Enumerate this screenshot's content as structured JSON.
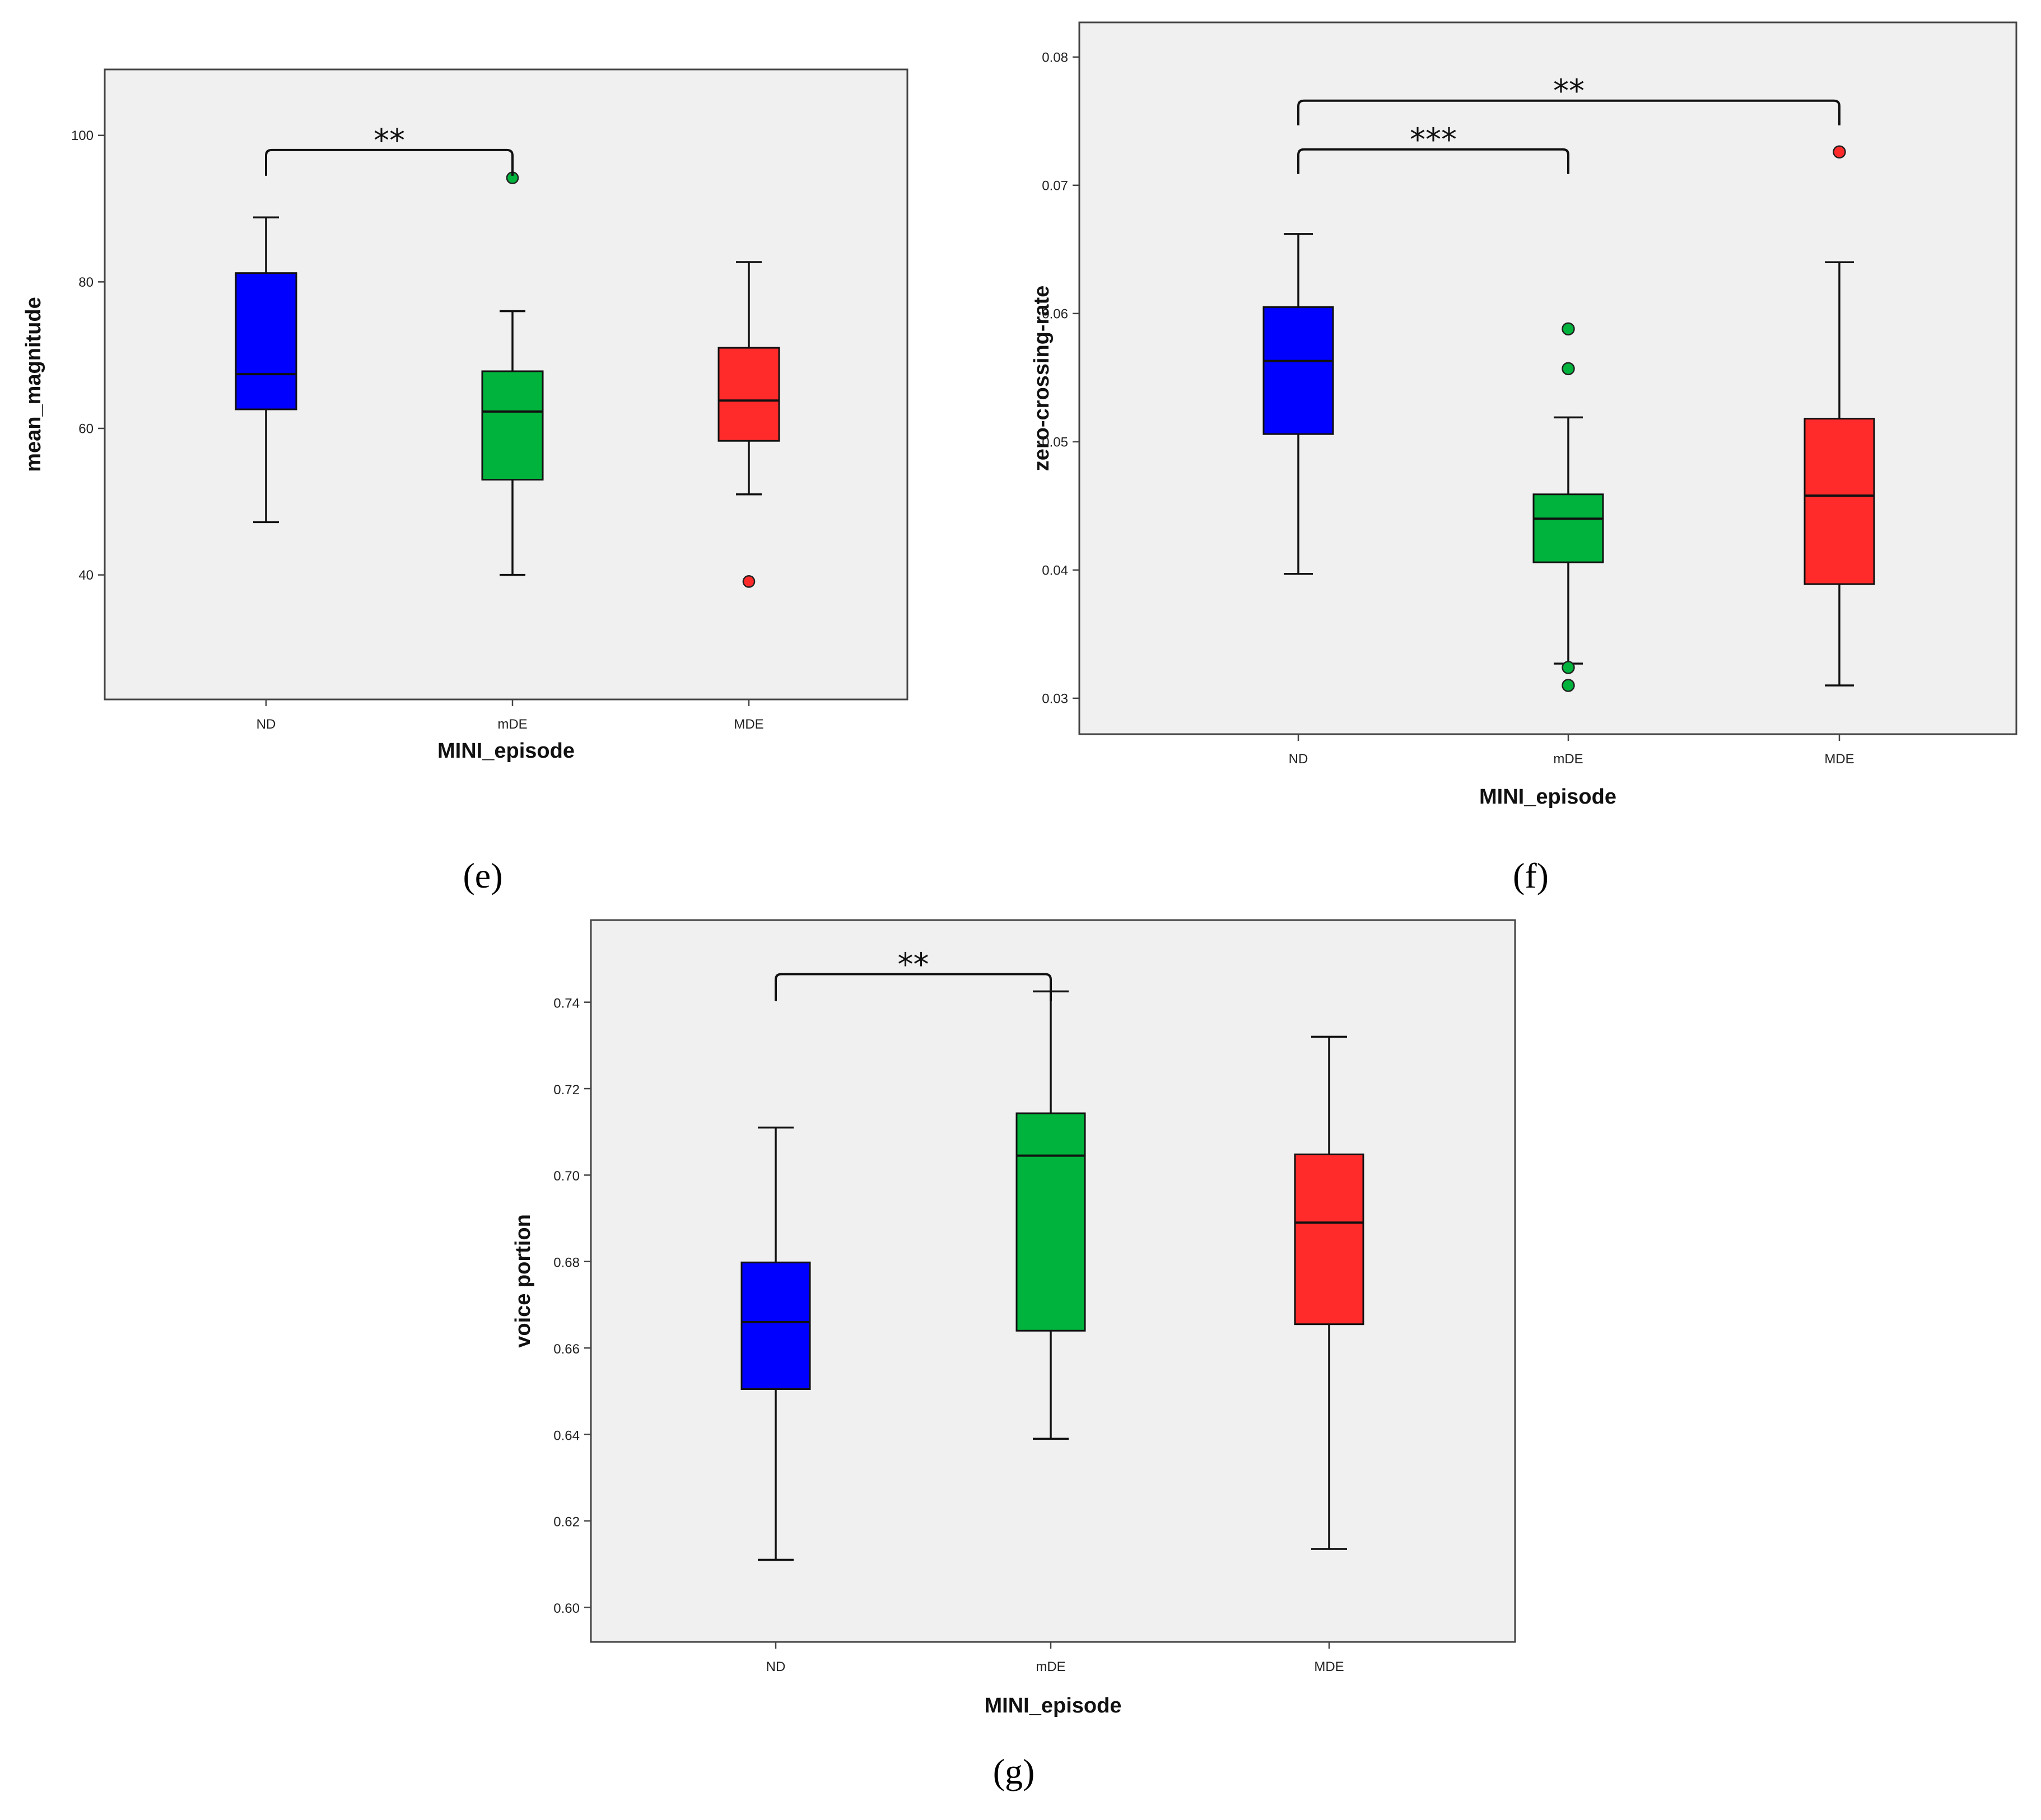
{
  "chart_data": [
    {
      "type": "box",
      "panel_label": "(e)",
      "xlabel": "MINI_episode",
      "ylabel": "mean_magnitude",
      "ylim": [
        23,
        109
      ],
      "yticks": [
        40,
        60,
        80,
        100
      ],
      "y_decimals": 0,
      "categories": [
        "ND",
        "mDE",
        "MDE"
      ],
      "boxes": [
        {
          "name": "ND",
          "color": "#0000ff",
          "min": 47.2,
          "q1": 62.6,
          "median": 67.4,
          "q3": 81.2,
          "max": 88.8,
          "outliers": []
        },
        {
          "name": "mDE",
          "color": "#00b33c",
          "min": 40.0,
          "q1": 53.0,
          "median": 62.3,
          "q3": 67.8,
          "max": 76.0,
          "outliers": [
            94.2
          ]
        },
        {
          "name": "MDE",
          "color": "#ff2b2b",
          "min": 51.0,
          "q1": 58.3,
          "median": 63.8,
          "q3": 71.0,
          "max": 82.7,
          "outliers": [
            39.1
          ]
        }
      ],
      "significance": [
        {
          "from": "ND",
          "to": "mDE",
          "label": "**",
          "y": 98
        }
      ]
    },
    {
      "type": "box",
      "panel_label": "(f)",
      "xlabel": "MINI_episode",
      "ylabel": "zero-crossing-rate",
      "ylim": [
        0.0272,
        0.0827
      ],
      "yticks": [
        0.03,
        0.04,
        0.05,
        0.06,
        0.07,
        0.08
      ],
      "y_decimals": 2,
      "categories": [
        "ND",
        "mDE",
        "MDE"
      ],
      "boxes": [
        {
          "name": "ND",
          "color": "#0000ff",
          "min": 0.0397,
          "q1": 0.0506,
          "median": 0.0563,
          "q3": 0.0605,
          "max": 0.0662,
          "outliers": []
        },
        {
          "name": "mDE",
          "color": "#00b33c",
          "min": 0.0327,
          "q1": 0.0406,
          "median": 0.044,
          "q3": 0.0459,
          "max": 0.0519,
          "outliers": [
            0.0588,
            0.0557,
            0.0324,
            0.031
          ]
        },
        {
          "name": "MDE",
          "color": "#ff2b2b",
          "min": 0.031,
          "q1": 0.0389,
          "median": 0.0458,
          "q3": 0.0518,
          "max": 0.064,
          "outliers": [
            0.0726
          ]
        }
      ],
      "significance": [
        {
          "from": "ND",
          "to": "mDE",
          "label": "***",
          "y": 0.0728
        },
        {
          "from": "ND",
          "to": "MDE",
          "label": "**",
          "y": 0.0766
        }
      ]
    },
    {
      "type": "box",
      "panel_label": "(g)",
      "xlabel": "MINI_episode",
      "ylabel": "voice portion",
      "ylim": [
        0.592,
        0.759
      ],
      "yticks": [
        0.6,
        0.62,
        0.64,
        0.66,
        0.68,
        0.7,
        0.72,
        0.74
      ],
      "y_decimals": 2,
      "categories": [
        "ND",
        "mDE",
        "MDE"
      ],
      "boxes": [
        {
          "name": "ND",
          "color": "#0000ff",
          "min": 0.611,
          "q1": 0.6505,
          "median": 0.666,
          "q3": 0.6798,
          "max": 0.711,
          "outliers": []
        },
        {
          "name": "mDE",
          "color": "#00b33c",
          "min": 0.639,
          "q1": 0.664,
          "median": 0.7045,
          "q3": 0.7143,
          "max": 0.7425,
          "outliers": []
        },
        {
          "name": "MDE",
          "color": "#ff2b2b",
          "min": 0.6135,
          "q1": 0.6655,
          "median": 0.689,
          "q3": 0.7048,
          "max": 0.732,
          "outliers": []
        }
      ],
      "significance": [
        {
          "from": "ND",
          "to": "mDE",
          "label": "**",
          "y": 0.7465
        }
      ]
    }
  ]
}
